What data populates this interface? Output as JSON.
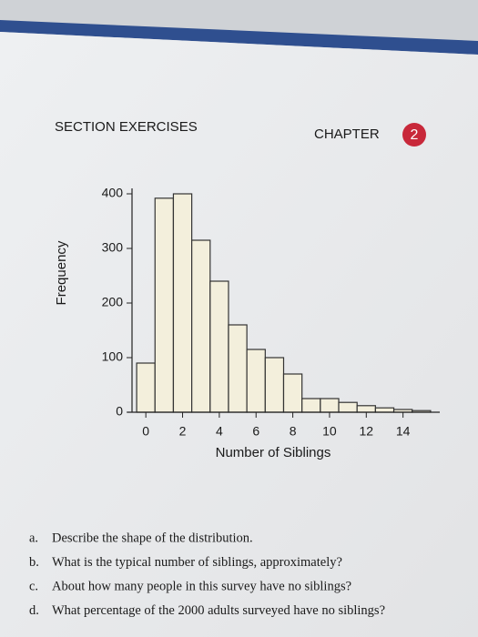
{
  "header": {
    "section": "SECTION EXERCISES",
    "chapter": "CHAPTER",
    "chapter_number": "2"
  },
  "chart_data": {
    "type": "histogram",
    "xlabel": "Number of Siblings",
    "ylabel": "Frequency",
    "bins": [
      -0.5,
      0.5,
      1.5,
      2.5,
      3.5,
      4.5,
      5.5,
      6.5,
      7.5,
      8.5,
      9.5,
      10.5,
      11.5,
      12.5,
      13.5,
      14.5,
      15.5
    ],
    "values": [
      90,
      392,
      400,
      315,
      240,
      160,
      115,
      100,
      70,
      25,
      25,
      18,
      12,
      8,
      5,
      3
    ],
    "color": "#f3efdc",
    "xlim": [
      -1,
      16
    ],
    "xticks": [
      0,
      2,
      4,
      6,
      8,
      10,
      12,
      14
    ],
    "ylim": [
      0,
      410
    ],
    "yticks": [
      0,
      100,
      200,
      300,
      400
    ]
  },
  "questions": [
    {
      "label": "a.",
      "text": "Describe the shape of the distribution."
    },
    {
      "label": "b.",
      "text": "What is the typical number of siblings, approximately?"
    },
    {
      "label": "c.",
      "text": "About how many people in this survey have no siblings?"
    },
    {
      "label": "d.",
      "text": "What percentage of the 2000 adults surveyed have no siblings?"
    }
  ]
}
